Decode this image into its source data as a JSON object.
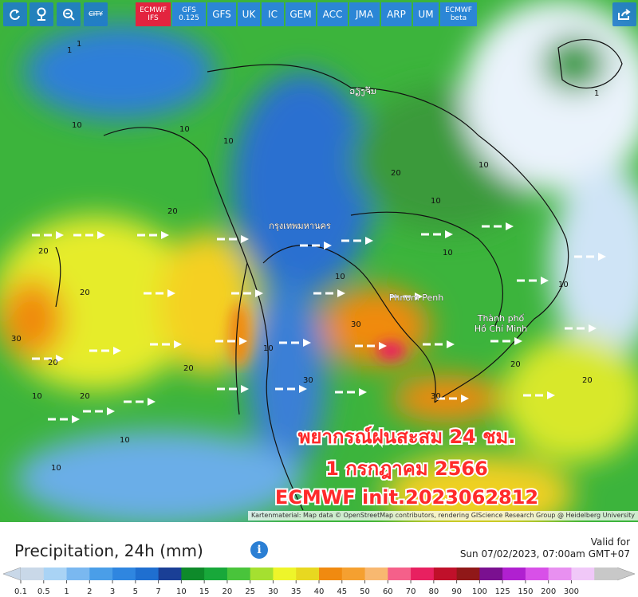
{
  "toolbar": {
    "city": "CITY",
    "models": [
      "ECMWF IFS",
      "GFS 0.125",
      "GFS",
      "UK",
      "IC",
      "GEM",
      "ACC",
      "JMA",
      "ARP",
      "UM",
      "ECMWF beta"
    ],
    "active": "ECMWF IFS"
  },
  "map": {
    "places": [
      "ວຽງຈັນ",
      "กรุงเทพมหานคร",
      "Phnom Penh",
      "Thành phố Hồ Chí Minh"
    ],
    "contour_labels": [
      "1",
      "10",
      "10",
      "10",
      "20",
      "20",
      "20",
      "20",
      "20",
      "30",
      "30",
      "30",
      "20",
      "10",
      "10",
      "10",
      "20",
      "10",
      "1",
      "1",
      "10",
      "20",
      "10",
      "30",
      "10",
      "20",
      "10",
      "10"
    ],
    "overlay": [
      "พยากรณ์ฝนสะสม 24 ชม.",
      "1 กรกฎาคม 2566",
      "ECMWF init.2023062812"
    ],
    "attribution": "Kartenmaterial: Map data © OpenStreetMap contributors, rendering GIScience Research Group @ Heidelberg University"
  },
  "legend": {
    "title": "Precipitation, 24h (mm)",
    "valid_label": "Valid for",
    "valid_time": "Sun 07/02/2023, 07:00am GMT+07",
    "labels": [
      "0.1",
      "0.5",
      "1",
      "2",
      "3",
      "5",
      "7",
      "10",
      "15",
      "20",
      "25",
      "30",
      "35",
      "40",
      "45",
      "50",
      "60",
      "70",
      "80",
      "90",
      "100",
      "125",
      "150",
      "200",
      "300"
    ],
    "colors": [
      "#c9d8e8",
      "#a9d3f5",
      "#7ab8f0",
      "#4a9ee8",
      "#2f86e0",
      "#1f6fd0",
      "#1a3f96",
      "#0e8a2a",
      "#18a83a",
      "#49c43b",
      "#a5e030",
      "#eef52a",
      "#e8d820",
      "#f08a10",
      "#f5a030",
      "#f8b870",
      "#f5608a",
      "#e82060",
      "#c0102a",
      "#901818",
      "#7a1090",
      "#b020d0",
      "#d850e8",
      "#e890f0",
      "#f0c8f8",
      "#c8c8c8"
    ]
  }
}
